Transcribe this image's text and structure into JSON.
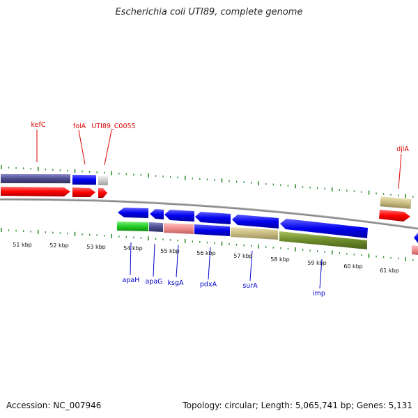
{
  "title": "Escherichia coli UTI89, complete genome",
  "accession": "Accession: NC_007946",
  "stats": "Topology: circular; Length: 5,065,741 bp; Genes: 5,131",
  "colors": {
    "forward_label": "#dd0000",
    "reverse_label": "#0000cc",
    "tick": "#2e8b2e",
    "backbone": "#888888"
  },
  "scale_labels": [
    "51 kbp",
    "52 kbp",
    "53 kbp",
    "54 kbp",
    "55 kbp",
    "56 kbp",
    "57 kbp",
    "58 kbp",
    "59 kbp",
    "60 kbp",
    "61 kbp"
  ],
  "forward_genes": [
    "kefC",
    "folA",
    "UTI89_C0055",
    "djlA"
  ],
  "reverse_genes": [
    "apaH",
    "apaG",
    "ksgA",
    "pdxA",
    "surA",
    "imp"
  ]
}
